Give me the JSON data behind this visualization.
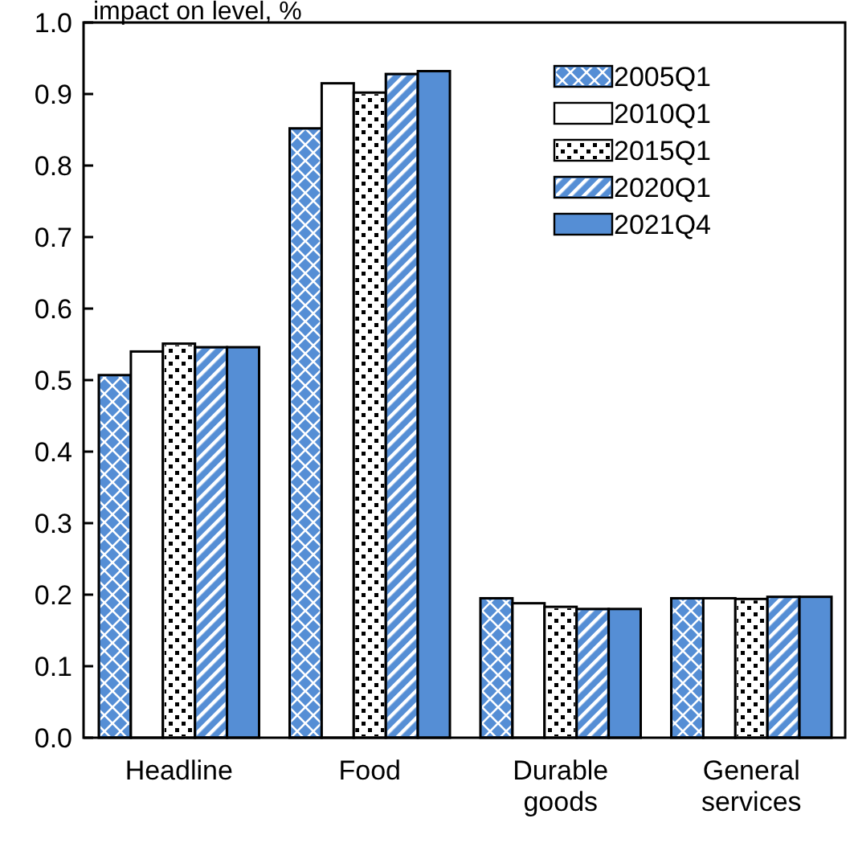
{
  "chart_data": {
    "type": "bar",
    "ylabel": "impact on level, %",
    "categories": [
      "Headline",
      "Food",
      "Durable goods",
      "General services"
    ],
    "series": [
      {
        "name": "2005Q1",
        "color": "#558ed5",
        "values": [
          0.507,
          0.852,
          0.195,
          0.195
        ]
      },
      {
        "name": "2010Q1",
        "color": "#ffffff",
        "values": [
          0.54,
          0.915,
          0.188,
          0.195
        ]
      },
      {
        "name": "2015Q1",
        "color": "#ffffff",
        "values": [
          0.551,
          0.902,
          0.183,
          0.194
        ]
      },
      {
        "name": "2020Q1",
        "color": "#558ed5",
        "values": [
          0.546,
          0.928,
          0.18,
          0.197
        ]
      },
      {
        "name": "2021Q4",
        "color": "#558ed5",
        "values": [
          0.546,
          0.932,
          0.18,
          0.197
        ]
      }
    ],
    "ylim": [
      0,
      1
    ],
    "yticks": [
      {
        "value": 0,
        "label": "0.0"
      },
      {
        "value": 0.1,
        "label": "0.1"
      },
      {
        "value": 0.2,
        "label": "0.2"
      },
      {
        "value": 0.3,
        "label": "0.3"
      },
      {
        "value": 0.4,
        "label": "0.4"
      },
      {
        "value": 0.5,
        "label": "0.5"
      },
      {
        "value": 0.6,
        "label": "0.6"
      },
      {
        "value": 0.7,
        "label": "0.7"
      },
      {
        "value": 0.8,
        "label": "0.8"
      },
      {
        "value": 0.9,
        "label": "0.9"
      },
      {
        "value": 1,
        "label": "1.0"
      }
    ],
    "grid": false,
    "legend": "top right"
  }
}
